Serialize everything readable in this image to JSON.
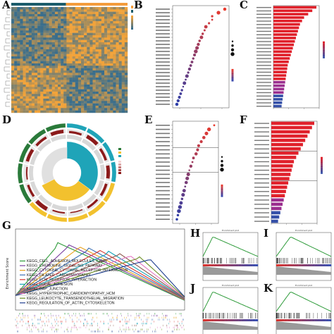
{
  "panel_letters": [
    "A",
    "B",
    "C",
    "D",
    "E",
    "F",
    "G",
    "H",
    "I",
    "J",
    "K"
  ],
  "colors": {
    "heat_low": "#3a6e8c",
    "heat_high": "#f2a33a",
    "dot_high": "#e83a2e",
    "dot_low": "#2e3fa8",
    "bar_red": "#e0212b",
    "bar_purple": "#9b2f8f",
    "bar_blue": "#3550a8",
    "annot_orange": "#f39c3c",
    "annot_teal": "#1b5c6b",
    "circos_yellow": "#f2c12e",
    "circos_teal": "#1fa4b8",
    "circos_darkred": "#8b1a1a",
    "gsea_green": "#2e9b3a"
  },
  "gsea": {
    "ylabel": "Enrichment Score",
    "terms": [
      "KEGG_CELL_ADHESION_MOLECULES_CAMS",
      "KEGG_CHEMOKINE_SIGNALING_PATHWAY",
      "KEGG_CYTOKINE_CYTOKINE_RECEPTOR_INTERACTION",
      "KEGG_DILATED_CARDIOMYOPATHY",
      "KEGG_ECM_RECEPTOR_INTERACTION",
      "KEGG_FOCAL_ADHESION",
      "KEGG_GAP_JUNCTION",
      "KEGG_HYPERTROPHIC_CARDIOMYOPATHY_HCM",
      "KEGG_LEUKOCYTE_TRANSENDOTHELIAL_MIGRATION",
      "KEGG_REGULATION_OF_ACTIN_CYTOSKELETON"
    ],
    "series_colors": [
      "#2e9b3a",
      "#7b3fa0",
      "#e8a21e",
      "#3b6fb6",
      "#d8342f",
      "#17a2b8",
      "#8c564b",
      "#e377c2",
      "#6b8e23",
      "#1f3f8f"
    ]
  },
  "mini_gsea": [
    {
      "panel": "H",
      "title": "Enrichment plot"
    },
    {
      "panel": "I",
      "title": "Enrichment plot"
    },
    {
      "panel": "J",
      "title": "Enrichment plot"
    },
    {
      "panel": "K",
      "title": "Enrichment plot"
    }
  ],
  "chart_data": [
    {
      "panel": "A",
      "type": "heatmap",
      "title": ""
    },
    {
      "panel": "B",
      "type": "scatter",
      "title": "",
      "values": [
        0.12,
        0.11,
        0.1,
        0.1,
        0.095,
        0.09,
        0.088,
        0.085,
        0.083,
        0.08,
        0.078,
        0.076,
        0.074,
        0.072,
        0.07,
        0.068,
        0.066,
        0.064,
        0.062,
        0.06,
        0.058,
        0.056,
        0.054,
        0.052,
        0.05,
        0.048,
        0.046,
        0.044
      ]
    },
    {
      "panel": "C",
      "type": "bar",
      "title": "",
      "values": [
        8,
        8.5,
        9,
        9.5,
        10,
        10.5,
        11,
        11.5,
        12,
        12.5,
        13,
        13.5,
        14,
        15,
        16,
        17,
        18,
        19,
        20,
        21,
        22,
        23,
        24,
        25,
        26,
        28,
        30,
        34,
        38,
        42
      ]
    },
    {
      "panel": "E",
      "type": "scatter",
      "title": "",
      "values": [
        0.1,
        0.09,
        0.085,
        0.08,
        0.075,
        0.07,
        0.068,
        0.065,
        0.06,
        0.058,
        0.055,
        0.052,
        0.05,
        0.048,
        0.046,
        0.044,
        0.042,
        0.04,
        0.038,
        0.036,
        0.034,
        0.032,
        0.03,
        0.028
      ]
    },
    {
      "panel": "F",
      "type": "bar",
      "title": "",
      "values": [
        6,
        7,
        8,
        9,
        10,
        11,
        12,
        13,
        14,
        15,
        16,
        17,
        18,
        19,
        20,
        22,
        24,
        26,
        28,
        30,
        32,
        34,
        36,
        38
      ]
    }
  ]
}
